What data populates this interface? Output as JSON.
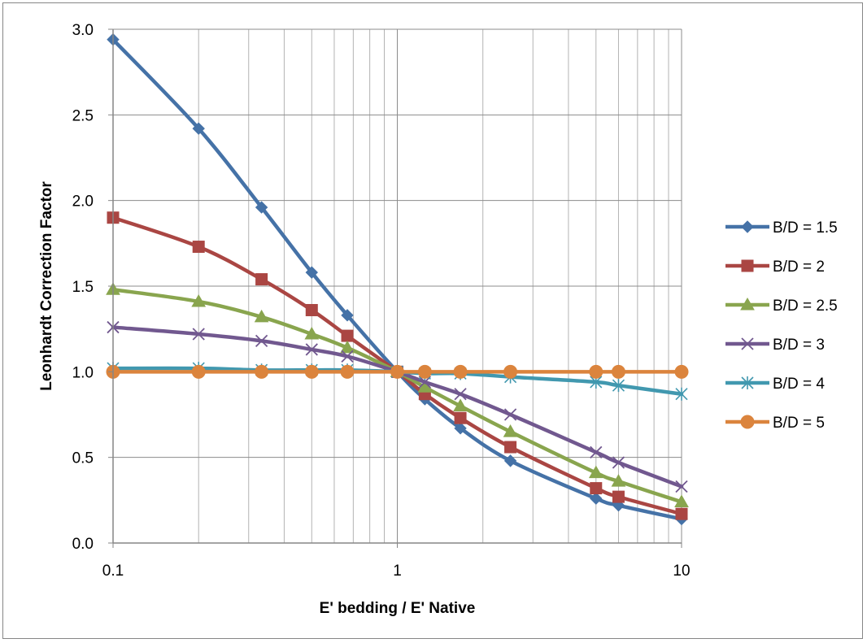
{
  "chart_data": {
    "type": "line",
    "title": "",
    "xlabel": "E' bedding / E' Native",
    "ylabel": "Leonhardt Correction Factor",
    "xscale": "log",
    "xlim": [
      0.1,
      10
    ],
    "ylim": [
      0,
      3
    ],
    "xticks": [
      0.1,
      1,
      10
    ],
    "xtick_labels": [
      "0.1",
      "1",
      "10"
    ],
    "yticks": [
      0,
      0.5,
      1,
      1.5,
      2,
      2.5,
      3
    ],
    "ytick_labels": [
      "0.0",
      "0.5",
      "1.0",
      "1.5",
      "2.0",
      "2.5",
      "3.0"
    ],
    "grid": true,
    "legend_position": "right",
    "series": [
      {
        "name": "B/D = 1.5",
        "color": "#4572A7",
        "marker": "diamond",
        "x": [
          0.1,
          0.2,
          0.333,
          0.5,
          0.667,
          1,
          1.25,
          1.667,
          2.5,
          5,
          6,
          10
        ],
        "y": [
          2.94,
          2.42,
          1.96,
          1.58,
          1.33,
          1.0,
          0.84,
          0.67,
          0.48,
          0.26,
          0.22,
          0.14
        ]
      },
      {
        "name": "B/D = 2",
        "color": "#AA4643",
        "marker": "square",
        "x": [
          0.1,
          0.2,
          0.333,
          0.5,
          0.667,
          1,
          1.25,
          1.667,
          2.5,
          5,
          6,
          10
        ],
        "y": [
          1.9,
          1.73,
          1.54,
          1.36,
          1.21,
          1.0,
          0.87,
          0.73,
          0.56,
          0.32,
          0.27,
          0.17
        ]
      },
      {
        "name": "B/D = 2.5",
        "color": "#89A54E",
        "marker": "triangle",
        "x": [
          0.1,
          0.2,
          0.333,
          0.5,
          0.667,
          1,
          1.25,
          1.667,
          2.5,
          5,
          6,
          10
        ],
        "y": [
          1.48,
          1.41,
          1.32,
          1.22,
          1.14,
          1.0,
          0.91,
          0.8,
          0.65,
          0.41,
          0.36,
          0.24
        ]
      },
      {
        "name": "B/D = 3",
        "color": "#71588F",
        "marker": "x",
        "x": [
          0.1,
          0.2,
          0.333,
          0.5,
          0.667,
          1,
          1.25,
          1.667,
          2.5,
          5,
          6,
          10
        ],
        "y": [
          1.26,
          1.22,
          1.18,
          1.13,
          1.09,
          1.0,
          0.94,
          0.87,
          0.75,
          0.53,
          0.47,
          0.33
        ]
      },
      {
        "name": "B/D = 4",
        "color": "#4198AF",
        "marker": "asterisk",
        "x": [
          0.1,
          0.2,
          0.333,
          0.5,
          0.667,
          1,
          1.25,
          1.667,
          2.5,
          5,
          6,
          10
        ],
        "y": [
          1.02,
          1.02,
          1.01,
          1.01,
          1.01,
          1.0,
          0.99,
          0.99,
          0.97,
          0.94,
          0.92,
          0.87
        ]
      },
      {
        "name": "B/D = 5",
        "color": "#DB843D",
        "marker": "circle",
        "x": [
          0.1,
          0.2,
          0.333,
          0.5,
          0.667,
          1,
          1.25,
          1.667,
          2.5,
          5,
          6,
          10
        ],
        "y": [
          1.0,
          1.0,
          1.0,
          1.0,
          1.0,
          1.0,
          1.0,
          1.0,
          1.0,
          1.0,
          1.0,
          1.0
        ]
      }
    ]
  }
}
